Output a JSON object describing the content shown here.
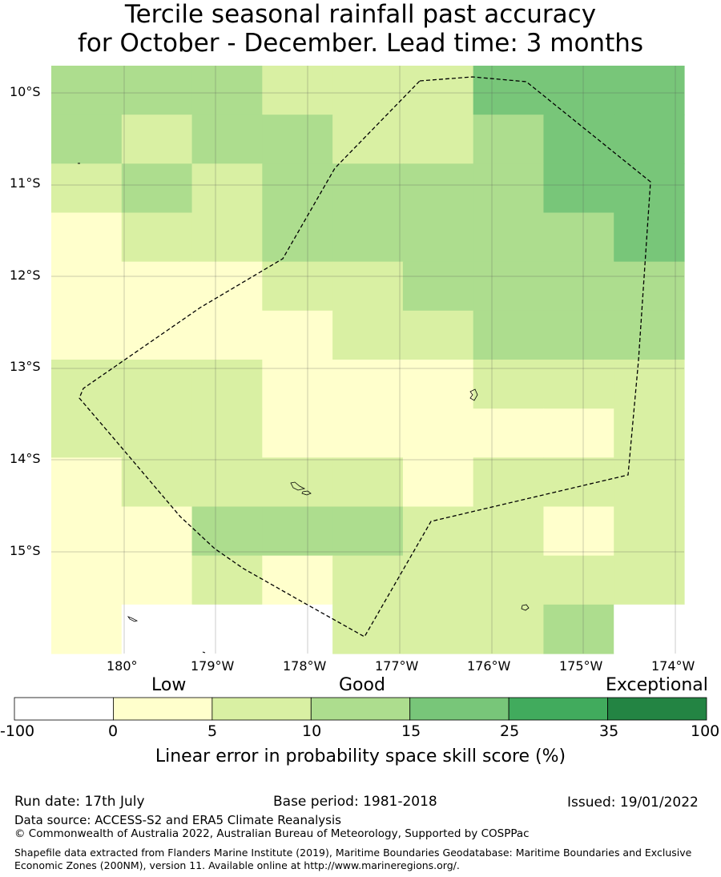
{
  "title": {
    "line1": "Tercile seasonal rainfall past accuracy",
    "line2": "for October - December. Lead time: 3 months"
  },
  "map": {
    "lat_ticks": [
      "10°S",
      "11°S",
      "12°S",
      "13°S",
      "14°S",
      "15°S"
    ],
    "lon_ticks": [
      "180°",
      "179°W",
      "178°W",
      "177°W",
      "176°W",
      "175°W",
      "174°W"
    ],
    "boundary_line": "dashed black",
    "grid_columns": 9,
    "grid_rows": 12,
    "grid_values": [
      [
        1,
        1,
        1,
        0,
        0,
        0,
        2,
        2,
        2
      ],
      [
        1,
        0,
        1,
        1,
        0,
        0,
        1,
        2,
        2
      ],
      [
        0,
        1,
        0,
        1,
        1,
        1,
        1,
        2,
        2
      ],
      [
        -1,
        0,
        0,
        1,
        1,
        1,
        1,
        1,
        2
      ],
      [
        -1,
        -1,
        -1,
        0,
        0,
        1,
        1,
        1,
        1
      ],
      [
        -1,
        -1,
        -1,
        -1,
        0,
        0,
        1,
        1,
        1
      ],
      [
        0,
        0,
        0,
        -1,
        -1,
        -1,
        0,
        0,
        0
      ],
      [
        0,
        0,
        0,
        -1,
        -1,
        -1,
        -1,
        -1,
        0
      ],
      [
        -1,
        0,
        0,
        0,
        0,
        -1,
        0,
        0,
        0
      ],
      [
        -1,
        -1,
        1,
        1,
        1,
        0,
        0,
        -1,
        0
      ],
      [
        -1,
        -1,
        0,
        -1,
        0,
        0,
        0,
        0,
        0
      ],
      [
        -1,
        -2,
        -2,
        -2,
        0,
        0,
        0,
        1,
        -2
      ]
    ],
    "category_colors": {
      "-2": "#ffffff",
      "-1": "#ffffcc",
      "0": "#d9f0a3",
      "1": "#addd8e",
      "2": "#78c679"
    }
  },
  "legend": {
    "category_labels": [
      "Low",
      "Good",
      "Exceptional"
    ],
    "boundaries": [
      "-100",
      "0",
      "5",
      "10",
      "15",
      "25",
      "35",
      "100"
    ],
    "colors": [
      "#ffffff",
      "#ffffcc",
      "#d9f0a3",
      "#addd8e",
      "#78c679",
      "#41ab5d",
      "#238443"
    ],
    "label": "Linear error in probability space skill score (%)"
  },
  "footer": {
    "run_date": "Run date: 17th July",
    "base_period": "Base period: 1981-2018",
    "issued": "Issued: 19/01/2022",
    "data_source": "Data source: ACCESS-S2 and ERA5 Climate Reanalysis",
    "copyright": "© Commonwealth of Australia 2022, Australian Bureau of Meteorology, Supported by COSPPac",
    "shapefile": "Shapefile data extracted from Flanders Marine Institute (2019), Maritime Boundaries Geodatabase: Maritime Boundaries and Exclusive Economic Zones (200NM), version 11. Available online at http://www.marineregions.org/."
  }
}
